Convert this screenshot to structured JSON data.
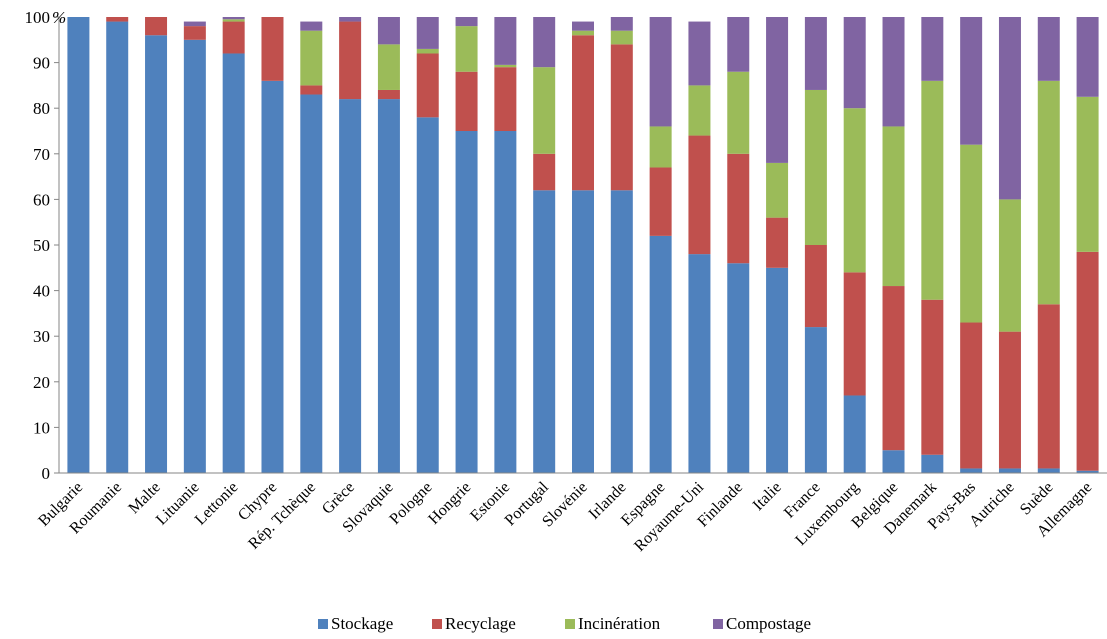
{
  "chart_data": {
    "type": "bar",
    "stacked": true,
    "title": "",
    "xlabel": "",
    "ylabel": "",
    "y_unit": "%",
    "ylim": [
      0,
      100
    ],
    "y_ticks": [
      0,
      10,
      20,
      30,
      40,
      50,
      60,
      70,
      80,
      90,
      100
    ],
    "grid": false,
    "legend_position": "bottom",
    "categories": [
      "Bulgarie",
      "Roumanie",
      "Malte",
      "Lituanie",
      "Lettonie",
      "Chypre",
      "Rép. Tchèque",
      "Grèce",
      "Slovaquie",
      "Pologne",
      "Hongrie",
      "Estonie",
      "Portugal",
      "Slovénie",
      "Irlande",
      "Espagne",
      "Royaume-Uni",
      "Finlande",
      "Italie",
      "France",
      "Luxembourg",
      "Belgique",
      "Danemark",
      "Pays-Bas",
      "Autriche",
      "Suède",
      "Allemagne"
    ],
    "series": [
      {
        "name": "Stockage",
        "color": "#4F81BD",
        "values": [
          100,
          99,
          96,
          95,
          92,
          86,
          83,
          82,
          82,
          78,
          75,
          75,
          62,
          62,
          62,
          52,
          48,
          46,
          45,
          32,
          17,
          5,
          4,
          1,
          1,
          1,
          0.5
        ]
      },
      {
        "name": "Recyclage",
        "color": "#C0504D",
        "values": [
          0,
          1,
          4,
          3,
          7,
          14,
          2,
          17,
          2,
          14,
          13,
          14,
          8,
          34,
          32,
          15,
          26,
          24,
          11,
          18,
          27,
          36,
          34,
          32,
          30,
          36,
          48
        ]
      },
      {
        "name": "Incinération",
        "color": "#9BBB59",
        "values": [
          0,
          0,
          0,
          0,
          0.5,
          0,
          12,
          0,
          10,
          1,
          10,
          0.5,
          19,
          1,
          3,
          9,
          11,
          18,
          12,
          34,
          36,
          35,
          48,
          39,
          29,
          49,
          34
        ]
      },
      {
        "name": "Compostage",
        "color": "#8064A2",
        "values": [
          0,
          0,
          0,
          1,
          0.5,
          0,
          2,
          1,
          6,
          7,
          2,
          10.5,
          11,
          2,
          3,
          24,
          14,
          12,
          32,
          16,
          20,
          24,
          14,
          28,
          40,
          14,
          17.5
        ]
      }
    ]
  }
}
